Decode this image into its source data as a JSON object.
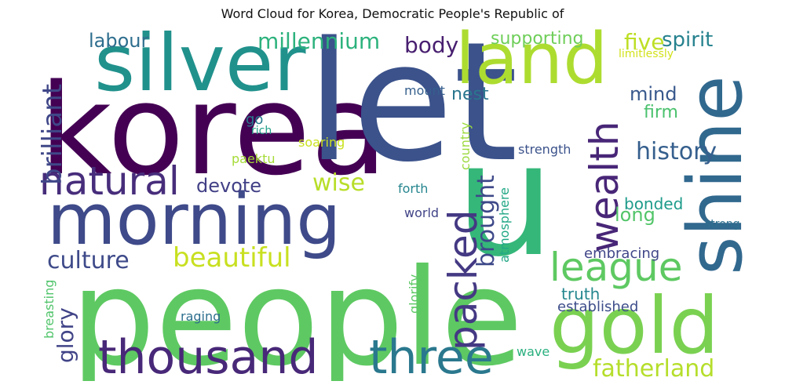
{
  "title": "Word Cloud for Korea, Democratic People's Republic of",
  "words": [
    {
      "text": "korea",
      "color": "#440154"
    },
    {
      "text": "let",
      "color": "#3b528b"
    },
    {
      "text": "u",
      "color": "#35b779"
    },
    {
      "text": "people",
      "color": "#5ec962"
    },
    {
      "text": "silver",
      "color": "#21918c"
    },
    {
      "text": "morning",
      "color": "#3e4a89"
    },
    {
      "text": "shine",
      "color": "#31688e"
    },
    {
      "text": "gold",
      "color": "#7ad151"
    },
    {
      "text": "land",
      "color": "#addc30"
    },
    {
      "text": "thousand",
      "color": "#482878"
    },
    {
      "text": "three",
      "color": "#2a788e"
    },
    {
      "text": "natural",
      "color": "#472d7b"
    },
    {
      "text": "packed",
      "color": "#443983"
    },
    {
      "text": "league",
      "color": "#5ec962"
    },
    {
      "text": "wealth",
      "color": "#482677"
    },
    {
      "text": "culture",
      "color": "#3e4a89"
    },
    {
      "text": "beautiful",
      "color": "#c8e020"
    },
    {
      "text": "fatherland",
      "color": "#b5de2b"
    },
    {
      "text": "history",
      "color": "#355f8d"
    },
    {
      "text": "millennium",
      "color": "#2db27d"
    },
    {
      "text": "brilliant",
      "color": "#3f4788"
    },
    {
      "text": "brought",
      "color": "#3e4989"
    },
    {
      "text": "glory",
      "color": "#414487"
    },
    {
      "text": "body",
      "color": "#481f70"
    },
    {
      "text": "mind",
      "color": "#38588c"
    },
    {
      "text": "five",
      "color": "#bddf26"
    },
    {
      "text": "spirit",
      "color": "#26828e"
    },
    {
      "text": "labour",
      "color": "#2e6e8e"
    },
    {
      "text": "supporting",
      "color": "#6ece58"
    },
    {
      "text": "wise",
      "color": "#b8de29"
    },
    {
      "text": "devote",
      "color": "#424086"
    },
    {
      "text": "long",
      "color": "#52c569"
    },
    {
      "text": "bonded",
      "color": "#1e9b8a"
    },
    {
      "text": "nest",
      "color": "#2a768e"
    },
    {
      "text": "firm",
      "color": "#4ac16d"
    },
    {
      "text": "truth",
      "color": "#24868e"
    },
    {
      "text": "embracing",
      "color": "#404688"
    },
    {
      "text": "established",
      "color": "#3d4d8a"
    },
    {
      "text": "mount",
      "color": "#355f8d"
    },
    {
      "text": "go",
      "color": "#287c8e"
    },
    {
      "text": "rich",
      "color": "#1fa088"
    },
    {
      "text": "soaring",
      "color": "#cae11f"
    },
    {
      "text": "paektu",
      "color": "#a5db36"
    },
    {
      "text": "country",
      "color": "#9bd93c"
    },
    {
      "text": "strength",
      "color": "#3b528b"
    },
    {
      "text": "forth",
      "color": "#25858e"
    },
    {
      "text": "world",
      "color": "#414487"
    },
    {
      "text": "atmosphere",
      "color": "#22a785"
    },
    {
      "text": "glorify",
      "color": "#5cc863"
    },
    {
      "text": "raging",
      "color": "#2e6f8e"
    },
    {
      "text": "breasting",
      "color": "#50c46a"
    },
    {
      "text": "wave",
      "color": "#2ab07f"
    },
    {
      "text": "strong",
      "color": "#2e6f8e"
    },
    {
      "text": "limitlessly",
      "color": "#d2e21b"
    }
  ]
}
